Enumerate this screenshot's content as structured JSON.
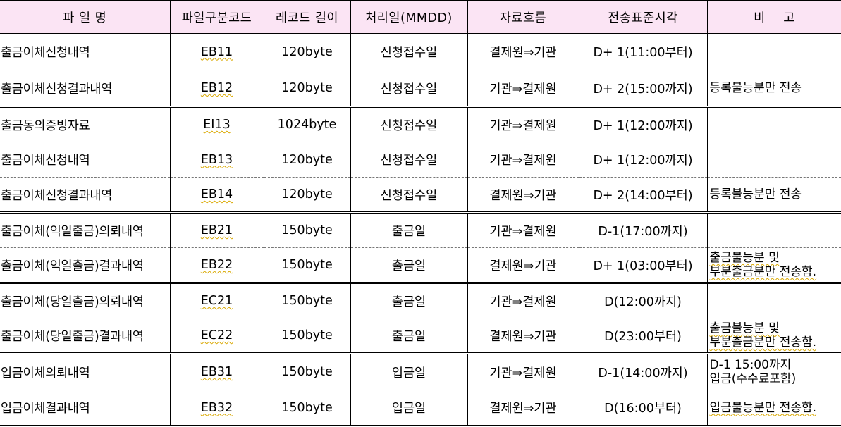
{
  "headers": [
    "파 일 명",
    "파일구분코드",
    "레코드 길이",
    "처리일(MMDD)",
    "자료흐름",
    "전송표준시각",
    "비고"
  ],
  "rows": [
    {
      "name": "출금이체신청내역",
      "code": "EB11",
      "length": "120byte",
      "day": "신청접수일",
      "flow": "결제원⇒기관",
      "time": "D+ 1(11:00부터)",
      "note": ""
    },
    {
      "name": "출금이체신청결과내역",
      "code": "EB12",
      "length": "120byte",
      "day": "신청접수일",
      "flow": "기관⇒결제원",
      "time": "D+ 2(15:00까지)",
      "note": "등록불능분만 전송"
    },
    {
      "name": "출금동의증빙자료",
      "code": "EI13",
      "length": "1024byte",
      "day": "신청접수일",
      "flow": "기관⇒결제원",
      "time": "D+ 1(12:00까지)",
      "note": ""
    },
    {
      "name": "출금이체신청내역",
      "code": "EB13",
      "length": "120byte",
      "day": "신청접수일",
      "flow": "기관⇒결제원",
      "time": "D+ 1(12:00까지)",
      "note": ""
    },
    {
      "name": "출금이체신청결과내역",
      "code": "EB14",
      "length": "120byte",
      "day": "신청접수일",
      "flow": "결제원⇒기관",
      "time": "D+ 2(14:00부터)",
      "note": "등록불능분만 전송"
    },
    {
      "name": "출금이체(익일출금)의뢰내역",
      "code": "EB21",
      "length": "150byte",
      "day": "출금일",
      "flow": "기관⇒결제원",
      "time": "D-1(17:00까지)",
      "note": ""
    },
    {
      "name": "출금이체(익일출금)결과내역",
      "code": "EB22",
      "length": "150byte",
      "day": "출금일",
      "flow": "결제원⇒기관",
      "time": "D+ 1(03:00부터)",
      "note": "출금불능분 및\n부분출금분만 전송함."
    },
    {
      "name": "출금이체(당일출금)의뢰내역",
      "code": "EC21",
      "length": "150byte",
      "day": "출금일",
      "flow": "기관⇒결제원",
      "time": "D(12:00까지)",
      "note": ""
    },
    {
      "name": "출금이체(당일출금)결과내역",
      "code": "EC22",
      "length": "150byte",
      "day": "출금일",
      "flow": "결제원⇒기관",
      "time": "D(23:00부터)",
      "note": "출금불능분 및\n부분출금분만 전송함."
    },
    {
      "name": "입금이체의뢰내역",
      "code": "EB31",
      "length": "150byte",
      "day": "입금일",
      "flow": "기관⇒결제원",
      "time": "D-1(14:00까지)",
      "note": "D-1 15:00까지\n입금(수수료포함)"
    },
    {
      "name": "입금이체결과내역",
      "code": "EB32",
      "length": "150byte",
      "day": "입금일",
      "flow": "결제원⇒기관",
      "time": "D(16:00부터)",
      "note": "입금불능분만 전송함."
    }
  ]
}
